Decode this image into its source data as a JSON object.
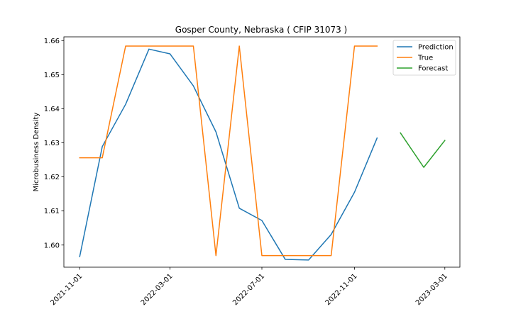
{
  "chart_data": {
    "type": "line",
    "title": "Gosper County, Nebraska ( CFIP 31073 )",
    "xlabel": "",
    "ylabel": "Microbusiness Density",
    "x_axis": "date",
    "xlim": [
      "2021-10-11",
      "2023-03-21"
    ],
    "ylim": [
      1.5935,
      1.6611
    ],
    "x_ticks": [
      "2021-11-01",
      "2022-03-01",
      "2022-07-01",
      "2022-11-01",
      "2023-03-01"
    ],
    "y_ticks": [
      1.6,
      1.61,
      1.62,
      1.63,
      1.64,
      1.65,
      1.66
    ],
    "y_tick_labels": [
      "1.60",
      "1.61",
      "1.62",
      "1.63",
      "1.64",
      "1.65",
      "1.66"
    ],
    "x_tick_rotation_deg": 45,
    "grid": false,
    "legend_position": "top-right",
    "series": [
      {
        "name": "Prediction",
        "color": "#1f77b4",
        "x": [
          "2021-11-01",
          "2021-12-01",
          "2022-01-01",
          "2022-02-01",
          "2022-03-01",
          "2022-04-01",
          "2022-05-01",
          "2022-06-01",
          "2022-07-01",
          "2022-08-01",
          "2022-09-01",
          "2022-10-01",
          "2022-11-01",
          "2022-12-01"
        ],
        "values": [
          1.5966,
          1.6289,
          1.6413,
          1.6575,
          1.6561,
          1.6467,
          1.6332,
          1.6108,
          1.6072,
          1.5958,
          1.5956,
          1.6031,
          1.6155,
          1.6314
        ]
      },
      {
        "name": "True",
        "color": "#ff7f0e",
        "x": [
          "2021-11-01",
          "2021-12-01",
          "2022-01-01",
          "2022-02-01",
          "2022-03-01",
          "2022-04-01",
          "2022-05-01",
          "2022-06-01",
          "2022-07-01",
          "2022-08-01",
          "2022-09-01",
          "2022-10-01",
          "2022-11-01",
          "2022-12-01"
        ],
        "values": [
          1.6256,
          1.6256,
          1.6584,
          1.6584,
          1.6584,
          1.6584,
          1.5969,
          1.6584,
          1.5969,
          1.5969,
          1.5969,
          1.5969,
          1.6584,
          1.6584
        ]
      },
      {
        "name": "Forecast",
        "color": "#2ca02c",
        "x": [
          "2023-01-01",
          "2023-02-01",
          "2023-03-01"
        ],
        "values": [
          1.6329,
          1.6228,
          1.6307
        ]
      }
    ]
  }
}
